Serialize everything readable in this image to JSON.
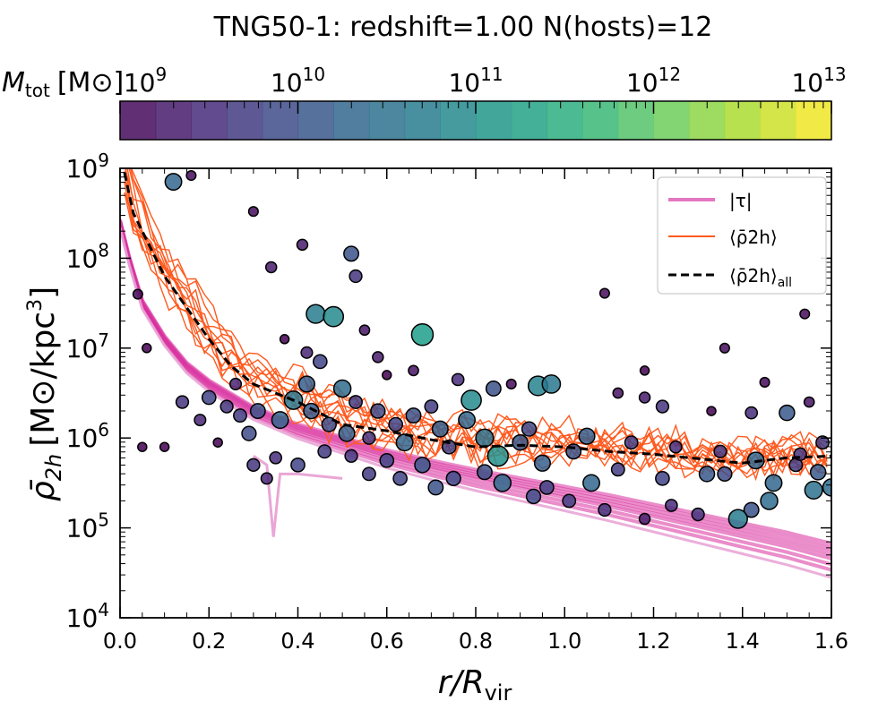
{
  "chart_data": {
    "type": "scatter",
    "title": "TNG50-1: redshift=1.00  N(hosts)=12",
    "xlabel": {
      "main": "r/R",
      "sub": "vir"
    },
    "ylabel": {
      "main": "ρ̄",
      "sub": "2h",
      "unit": "[M⊙/kpc",
      "sup": "3",
      "close": "]"
    },
    "xlim": [
      0.0,
      1.6
    ],
    "ylim_log10": [
      4,
      9
    ],
    "x_ticks": [
      "0.0",
      "0.2",
      "0.4",
      "0.6",
      "0.8",
      "1.0",
      "1.2",
      "1.4",
      "1.6"
    ],
    "y_ticks": [
      {
        "base": "10",
        "exp": "4"
      },
      {
        "base": "10",
        "exp": "5"
      },
      {
        "base": "10",
        "exp": "6"
      },
      {
        "base": "10",
        "exp": "7"
      },
      {
        "base": "10",
        "exp": "8"
      },
      {
        "base": "10",
        "exp": "9"
      }
    ],
    "colorbar": {
      "label": "M",
      "label_sub": "tot",
      "label_unit": "[M⊙]",
      "range_log10": [
        9,
        13
      ],
      "bins": 20,
      "ticks": [
        {
          "base": "10",
          "exp": "9"
        },
        {
          "base": "10",
          "exp": "10"
        },
        {
          "base": "10",
          "exp": "11"
        },
        {
          "base": "10",
          "exp": "12"
        },
        {
          "base": "10",
          "exp": "13"
        }
      ]
    },
    "legend": {
      "placement": "top-right",
      "entries": [
        {
          "label": "|τ|",
          "color": "#e377c2",
          "style": "solid"
        },
        {
          "label": "⟨ρ̄2h⟩",
          "color": "#ff5a1f",
          "style": "solid"
        },
        {
          "label": "⟨ρ̄2h⟩",
          "label_sub": "all",
          "color": "#000000",
          "style": "dashed"
        }
      ]
    },
    "series": [
      {
        "name": "|τ|",
        "color": "#d92f9e",
        "points": [
          [
            0.0,
            8.4
          ],
          [
            0.02,
            8.0
          ],
          [
            0.05,
            7.5
          ],
          [
            0.1,
            7.1
          ],
          [
            0.15,
            6.8
          ],
          [
            0.2,
            6.6
          ],
          [
            0.3,
            6.3
          ],
          [
            0.4,
            6.1
          ],
          [
            0.5,
            5.95
          ],
          [
            0.6,
            5.8
          ],
          [
            0.7,
            5.68
          ],
          [
            0.8,
            5.57
          ],
          [
            0.9,
            5.47
          ],
          [
            1.0,
            5.37
          ],
          [
            1.1,
            5.27
          ],
          [
            1.2,
            5.16
          ],
          [
            1.3,
            5.05
          ],
          [
            1.4,
            4.94
          ],
          [
            1.5,
            4.83
          ],
          [
            1.6,
            4.7
          ]
        ]
      },
      {
        "name": "⟨ρ̄2h⟩all",
        "color": "#000000",
        "points": [
          [
            0.01,
            8.95
          ],
          [
            0.03,
            8.5
          ],
          [
            0.06,
            8.2
          ],
          [
            0.1,
            7.8
          ],
          [
            0.15,
            7.45
          ],
          [
            0.2,
            7.1
          ],
          [
            0.25,
            6.8
          ],
          [
            0.3,
            6.6
          ],
          [
            0.4,
            6.4
          ],
          [
            0.5,
            6.15
          ],
          [
            0.6,
            6.08
          ],
          [
            0.7,
            5.98
          ],
          [
            0.8,
            5.9
          ],
          [
            0.9,
            5.92
          ],
          [
            1.0,
            5.9
          ],
          [
            1.1,
            5.85
          ],
          [
            1.2,
            5.82
          ],
          [
            1.3,
            5.77
          ],
          [
            1.4,
            5.72
          ],
          [
            1.5,
            5.78
          ],
          [
            1.6,
            5.8
          ]
        ]
      }
    ],
    "points": [
      {
        "x": 0.16,
        "y": 8.92,
        "m": 9.1
      },
      {
        "x": 0.12,
        "y": 8.85,
        "m": 10.3
      },
      {
        "x": 0.3,
        "y": 8.52,
        "m": 9.1
      },
      {
        "x": 0.41,
        "y": 8.15,
        "m": 9.3
      },
      {
        "x": 0.52,
        "y": 8.05,
        "m": 10.0
      },
      {
        "x": 0.53,
        "y": 7.8,
        "m": 9.6
      },
      {
        "x": 0.34,
        "y": 7.9,
        "m": 9.3
      },
      {
        "x": 0.44,
        "y": 7.38,
        "m": 10.7
      },
      {
        "x": 0.48,
        "y": 7.35,
        "m": 10.9
      },
      {
        "x": 0.68,
        "y": 7.15,
        "m": 11.2
      },
      {
        "x": 0.55,
        "y": 7.2,
        "m": 9.2
      },
      {
        "x": 0.37,
        "y": 7.1,
        "m": 9.0
      },
      {
        "x": 0.42,
        "y": 6.95,
        "m": 9.4
      },
      {
        "x": 0.58,
        "y": 6.9,
        "m": 9.3
      },
      {
        "x": 0.6,
        "y": 6.7,
        "m": 9.0
      },
      {
        "x": 0.66,
        "y": 6.75,
        "m": 9.2
      },
      {
        "x": 0.76,
        "y": 6.65,
        "m": 9.5
      },
      {
        "x": 0.84,
        "y": 6.55,
        "m": 10.0
      },
      {
        "x": 0.88,
        "y": 6.6,
        "m": 9.1
      },
      {
        "x": 0.94,
        "y": 6.58,
        "m": 10.8
      },
      {
        "x": 0.97,
        "y": 6.6,
        "m": 10.6
      },
      {
        "x": 1.12,
        "y": 6.5,
        "m": 9.2
      },
      {
        "x": 1.18,
        "y": 6.45,
        "m": 9.3
      },
      {
        "x": 1.22,
        "y": 6.35,
        "m": 9.6
      },
      {
        "x": 1.33,
        "y": 6.3,
        "m": 9.0
      },
      {
        "x": 1.42,
        "y": 6.28,
        "m": 9.5
      },
      {
        "x": 1.5,
        "y": 6.28,
        "m": 10.1
      },
      {
        "x": 1.09,
        "y": 7.61,
        "m": 9.1
      },
      {
        "x": 1.36,
        "y": 7.0,
        "m": 9.1
      },
      {
        "x": 1.54,
        "y": 7.38,
        "m": 9.1
      },
      {
        "x": 1.45,
        "y": 6.62,
        "m": 9.1
      },
      {
        "x": 1.18,
        "y": 6.75,
        "m": 9.0
      },
      {
        "x": 1.55,
        "y": 6.4,
        "m": 9.2
      },
      {
        "x": 0.79,
        "y": 6.42,
        "m": 10.9
      },
      {
        "x": 0.7,
        "y": 6.35,
        "m": 9.7
      },
      {
        "x": 0.62,
        "y": 6.15,
        "m": 9.8
      },
      {
        "x": 0.72,
        "y": 6.1,
        "m": 10.2
      },
      {
        "x": 0.82,
        "y": 6.0,
        "m": 10.5
      },
      {
        "x": 0.92,
        "y": 6.1,
        "m": 9.9
      },
      {
        "x": 1.05,
        "y": 6.02,
        "m": 10.2
      },
      {
        "x": 1.15,
        "y": 5.95,
        "m": 9.7
      },
      {
        "x": 1.25,
        "y": 5.9,
        "m": 9.5
      },
      {
        "x": 1.35,
        "y": 5.85,
        "m": 9.6
      },
      {
        "x": 1.43,
        "y": 5.75,
        "m": 10.3
      },
      {
        "x": 1.52,
        "y": 5.7,
        "m": 9.7
      },
      {
        "x": 1.57,
        "y": 5.62,
        "m": 10.1
      },
      {
        "x": 1.6,
        "y": 5.45,
        "m": 10.4
      },
      {
        "x": 1.56,
        "y": 5.42,
        "m": 10.5
      },
      {
        "x": 1.46,
        "y": 5.3,
        "m": 10.4
      },
      {
        "x": 1.42,
        "y": 5.2,
        "m": 10.0
      },
      {
        "x": 1.39,
        "y": 5.1,
        "m": 10.7
      },
      {
        "x": 1.3,
        "y": 5.15,
        "m": 9.6
      },
      {
        "x": 1.24,
        "y": 5.25,
        "m": 9.5
      },
      {
        "x": 1.18,
        "y": 5.1,
        "m": 9.3
      },
      {
        "x": 1.09,
        "y": 5.2,
        "m": 9.6
      },
      {
        "x": 1.01,
        "y": 5.3,
        "m": 9.7
      },
      {
        "x": 0.93,
        "y": 5.35,
        "m": 9.9
      },
      {
        "x": 0.86,
        "y": 5.5,
        "m": 10.4
      },
      {
        "x": 0.82,
        "y": 5.62,
        "m": 10.0
      },
      {
        "x": 0.75,
        "y": 5.55,
        "m": 9.9
      },
      {
        "x": 0.68,
        "y": 5.7,
        "m": 10.1
      },
      {
        "x": 0.6,
        "y": 5.75,
        "m": 9.8
      },
      {
        "x": 0.52,
        "y": 5.8,
        "m": 9.6
      },
      {
        "x": 0.46,
        "y": 5.85,
        "m": 9.7
      },
      {
        "x": 0.4,
        "y": 5.7,
        "m": 9.8
      },
      {
        "x": 0.35,
        "y": 5.78,
        "m": 9.5
      },
      {
        "x": 0.3,
        "y": 5.7,
        "m": 9.6
      },
      {
        "x": 0.33,
        "y": 5.55,
        "m": 9.4
      },
      {
        "x": 0.22,
        "y": 5.95,
        "m": 9.0
      },
      {
        "x": 0.18,
        "y": 6.2,
        "m": 9.4
      },
      {
        "x": 0.14,
        "y": 6.4,
        "m": 9.6
      },
      {
        "x": 0.2,
        "y": 6.45,
        "m": 9.8
      },
      {
        "x": 0.24,
        "y": 6.35,
        "m": 9.6
      },
      {
        "x": 0.27,
        "y": 6.25,
        "m": 9.7
      },
      {
        "x": 0.31,
        "y": 6.3,
        "m": 10.0
      },
      {
        "x": 0.36,
        "y": 6.2,
        "m": 10.3
      },
      {
        "x": 0.39,
        "y": 6.42,
        "m": 10.6
      },
      {
        "x": 0.43,
        "y": 6.3,
        "m": 10.1
      },
      {
        "x": 0.47,
        "y": 6.15,
        "m": 9.9
      },
      {
        "x": 0.51,
        "y": 6.05,
        "m": 10.2
      },
      {
        "x": 0.56,
        "y": 6.0,
        "m": 9.6
      },
      {
        "x": 0.64,
        "y": 5.95,
        "m": 10.3
      },
      {
        "x": 0.74,
        "y": 5.9,
        "m": 9.8
      },
      {
        "x": 0.85,
        "y": 5.8,
        "m": 11.0
      },
      {
        "x": 0.95,
        "y": 5.72,
        "m": 10.2
      },
      {
        "x": 1.12,
        "y": 5.65,
        "m": 9.7
      },
      {
        "x": 1.22,
        "y": 5.55,
        "m": 9.8
      },
      {
        "x": 1.32,
        "y": 5.6,
        "m": 10.1
      },
      {
        "x": 1.47,
        "y": 5.5,
        "m": 10.3
      },
      {
        "x": 0.1,
        "y": 5.9,
        "m": 9.0
      },
      {
        "x": 0.05,
        "y": 5.9,
        "m": 9.0
      },
      {
        "x": 0.06,
        "y": 7.0,
        "m": 9.0
      },
      {
        "x": 0.04,
        "y": 7.6,
        "m": 9.1
      },
      {
        "x": 0.26,
        "y": 6.6,
        "m": 9.4
      },
      {
        "x": 0.29,
        "y": 6.05,
        "m": 9.9
      },
      {
        "x": 0.42,
        "y": 6.6,
        "m": 10.2
      },
      {
        "x": 0.45,
        "y": 6.85,
        "m": 9.8
      },
      {
        "x": 0.5,
        "y": 6.55,
        "m": 10.4
      },
      {
        "x": 0.53,
        "y": 6.4,
        "m": 9.7
      },
      {
        "x": 0.58,
        "y": 6.3,
        "m": 9.9
      },
      {
        "x": 0.66,
        "y": 6.25,
        "m": 10.0
      },
      {
        "x": 0.78,
        "y": 6.2,
        "m": 10.3
      },
      {
        "x": 0.9,
        "y": 5.95,
        "m": 10.1
      },
      {
        "x": 1.02,
        "y": 5.85,
        "m": 10.0
      },
      {
        "x": 1.36,
        "y": 5.6,
        "m": 9.9
      },
      {
        "x": 1.53,
        "y": 5.82,
        "m": 9.6
      },
      {
        "x": 1.58,
        "y": 5.95,
        "m": 9.7
      },
      {
        "x": 0.56,
        "y": 5.6,
        "m": 9.7
      },
      {
        "x": 0.63,
        "y": 5.55,
        "m": 9.8
      },
      {
        "x": 0.71,
        "y": 5.45,
        "m": 10.0
      },
      {
        "x": 0.96,
        "y": 5.45,
        "m": 9.8
      },
      {
        "x": 1.06,
        "y": 5.5,
        "m": 10.3
      }
    ]
  }
}
